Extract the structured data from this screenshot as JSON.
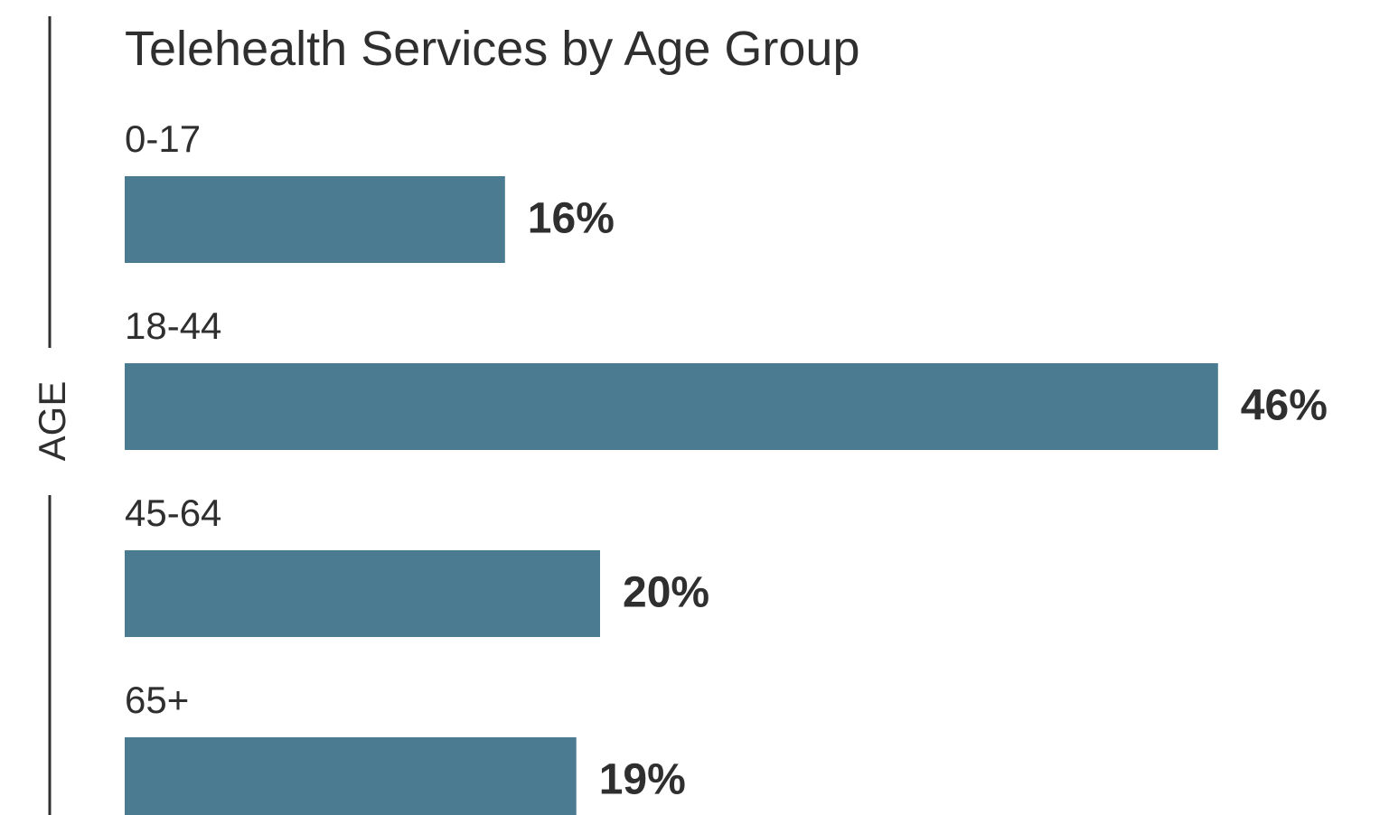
{
  "chart_data": {
    "type": "bar",
    "orientation": "horizontal",
    "title": "Telehealth Services by Age Group",
    "y_label": "AGE",
    "categories": [
      "0-17",
      "18-44",
      "45-64",
      "65+"
    ],
    "values": [
      16,
      46,
      20,
      19
    ],
    "value_labels": [
      "16%",
      "46%",
      "20%",
      "19%"
    ],
    "color": "#4a7b91"
  }
}
